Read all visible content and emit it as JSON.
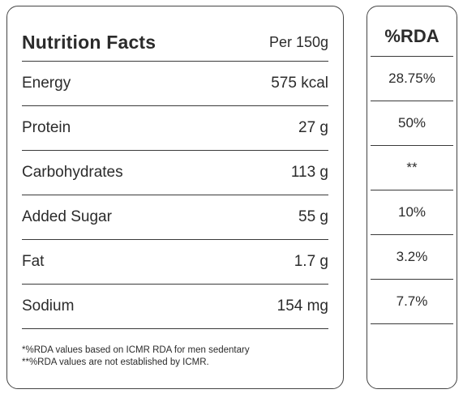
{
  "nutrition": {
    "title": "Nutrition Facts",
    "per": "Per 150g",
    "rows": [
      {
        "label": "Energy",
        "value": "575 kcal",
        "rda": "28.75%"
      },
      {
        "label": "Protein",
        "value": "27 g",
        "rda": "50%"
      },
      {
        "label": "Carbohydrates",
        "value": "113 g",
        "rda": "**"
      },
      {
        "label": "Added Sugar",
        "value": "55 g",
        "rda": "10%"
      },
      {
        "label": "Fat",
        "value": "1.7 g",
        "rda": "3.2%"
      },
      {
        "label": "Sodium",
        "value": "154 mg",
        "rda": "7.7%"
      }
    ],
    "footnote_1": "*%RDA values based on ICMR RDA for men sedentary",
    "footnote_2": "**%RDA values are not established by ICMR."
  },
  "rda": {
    "header": "%RDA"
  }
}
